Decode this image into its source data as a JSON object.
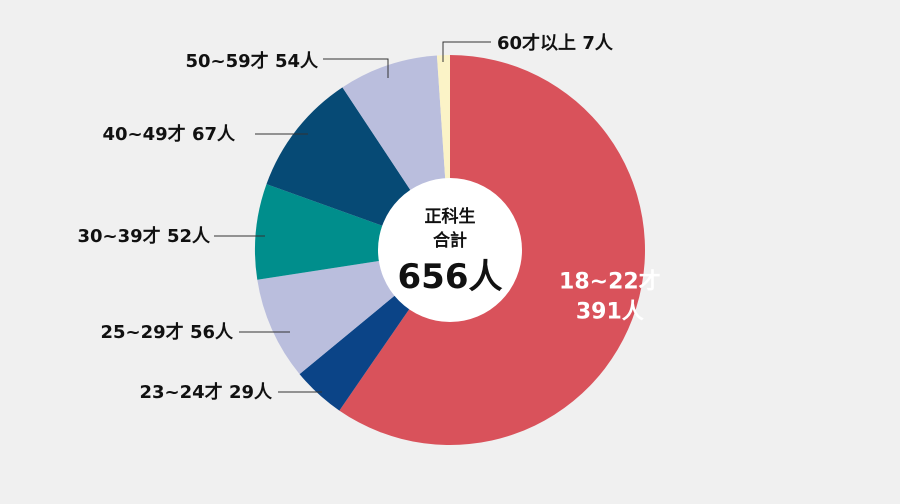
{
  "chart_data": {
    "type": "pie",
    "style": "donut",
    "center_label": {
      "line1": "正科生",
      "line2": "合計",
      "total": "656人"
    },
    "slices": [
      {
        "category": "18~22才",
        "value": 391,
        "label": "18~22才",
        "value_label": "391人",
        "color": "#d9525b",
        "label_inside": true
      },
      {
        "category": "23~24才",
        "value": 29,
        "label": "23~24才 29人",
        "color": "#0b4487"
      },
      {
        "category": "25~29才",
        "value": 56,
        "label": "25~29才 56人",
        "color": "#babedd"
      },
      {
        "category": "30~39才",
        "value": 52,
        "label": "30~39才 52人",
        "color": "#008e8c"
      },
      {
        "category": "40~49才",
        "value": 67,
        "label": "40~49才 67人",
        "color": "#064a75"
      },
      {
        "category": "50~59才",
        "value": 54,
        "label": "50~59才 54人",
        "color": "#babedd"
      },
      {
        "category": "60才以上",
        "value": 7,
        "label": "60才以上 7人",
        "color": "#fbf3c7"
      }
    ],
    "total": 656,
    "start": "top",
    "direction": "clockwise",
    "label_color_outside": "#111111",
    "label_color_inside": "#ffffff",
    "center_color": "#ffffff",
    "background": "#f0f0f0"
  }
}
